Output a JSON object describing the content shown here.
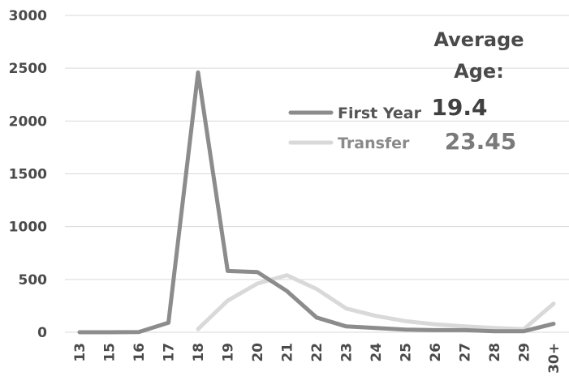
{
  "chart_data": {
    "type": "line",
    "categories": [
      "13",
      "15",
      "16",
      "17",
      "18",
      "19",
      "20",
      "21",
      "22",
      "23",
      "24",
      "25",
      "26",
      "27",
      "28",
      "29",
      "30+"
    ],
    "series": [
      {
        "name": "First Year",
        "color": "#8c8c8c",
        "values": [
          0,
          0,
          2,
          90,
          2460,
          580,
          570,
          390,
          140,
          55,
          40,
          25,
          20,
          20,
          10,
          10,
          80
        ]
      },
      {
        "name": "Transfer",
        "color": "#d9d9d9",
        "values": [
          null,
          null,
          null,
          null,
          30,
          300,
          460,
          540,
          410,
          225,
          155,
          105,
          75,
          55,
          40,
          30,
          270
        ]
      }
    ],
    "ylim": [
      0,
      3000
    ],
    "yticks": [
      0,
      500,
      1000,
      1500,
      2000,
      2500,
      3000
    ],
    "grid": true,
    "legend_position": "center-right",
    "title": "",
    "xlabel": "",
    "ylabel": ""
  },
  "annotation": {
    "label_line1": "Average",
    "label_line2": "Age:",
    "first_year_value": "19.4",
    "transfer_value": "23.45"
  }
}
